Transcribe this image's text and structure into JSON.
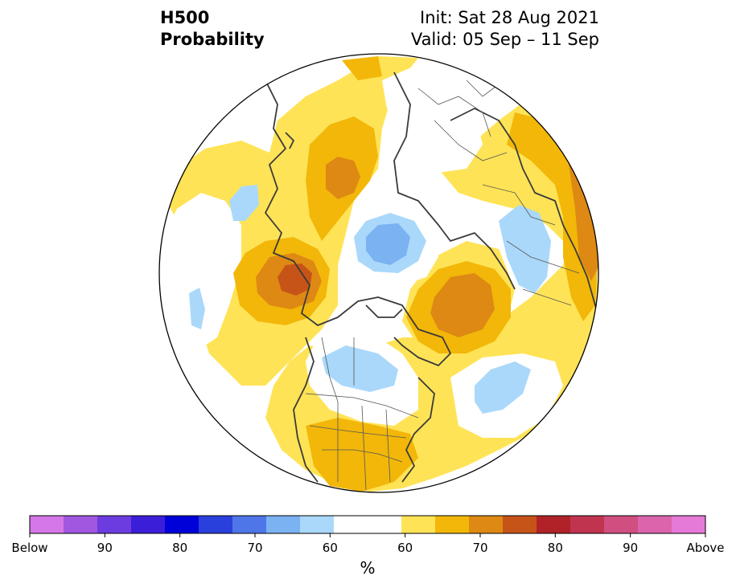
{
  "title": {
    "line1": "H500",
    "line2": "Probability",
    "init": "Init: Sat 28 Aug 2021",
    "valid": "Valid: 05 Sep – 11 Sep"
  },
  "colorbar": {
    "unit": "%",
    "tick_labels": [
      "Below",
      "90",
      "80",
      "70",
      "60",
      "60",
      "70",
      "80",
      "90",
      "Above"
    ],
    "colors": [
      "#d677e8",
      "#a157e0",
      "#6d3ce0",
      "#3b1ed8",
      "#0000d8",
      "#2a40dd",
      "#4f76e8",
      "#7ab2f2",
      "#aad8fa",
      "#ffffff",
      "#ffffff",
      "#ffe356",
      "#f2b709",
      "#de8913",
      "#c65418",
      "#b02228",
      "#c13450",
      "#d14e80",
      "#dc64ac",
      "#e67ad8"
    ]
  },
  "map": {
    "projection": "polar-stereographic",
    "region": "Northern Hemisphere",
    "colors": {
      "yellow": "#ffe356",
      "gold": "#f2b709",
      "orange": "#de8913",
      "dark_orange": "#c65418",
      "light_blue": "#aad8fa",
      "mid_blue": "#7ab2f2",
      "coast": "#3a3a3a",
      "border": "#555555"
    }
  }
}
